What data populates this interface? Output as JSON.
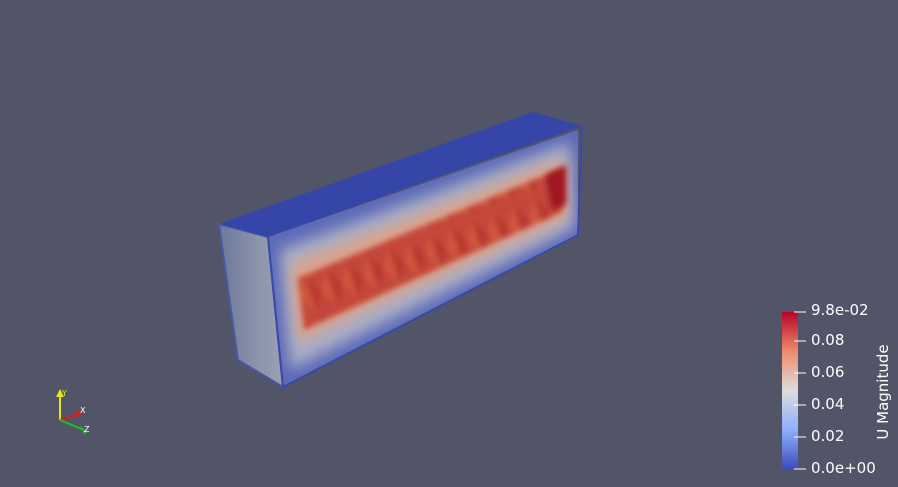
{
  "scalar_bar": {
    "title": "U Magnitude",
    "ticks": [
      "9.8e-02",
      "0.08",
      "0.06",
      "0.04",
      "0.02",
      "0.0e+00"
    ],
    "colors": {
      "max": "#b40426",
      "mid": "#dddcdc",
      "min": "#3b4cc0"
    }
  },
  "axes": {
    "x_label": "X",
    "y_label": "Y",
    "z_label": "Z",
    "x_color": "#d02020",
    "y_color": "#e6e620",
    "z_color": "#20c020"
  },
  "viewport": {
    "background": "#525468"
  }
}
